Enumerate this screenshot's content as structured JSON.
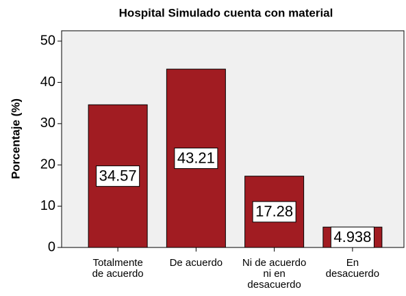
{
  "chart_data": {
    "type": "bar",
    "title": "Hospital Simulado cuenta con material",
    "ylabel": "Porcentaje  (%)",
    "categories": [
      "Totalmente\nde acuerdo",
      "De acuerdo",
      "Ni de acuerdo\nni en\ndesacuerdo",
      "En\ndesacuerdo"
    ],
    "values": [
      34.57,
      43.21,
      17.28,
      4.938
    ],
    "color": "#a11c22",
    "ylim": [
      0,
      52.5
    ],
    "yticks": [
      0,
      10,
      20,
      30,
      40,
      50
    ],
    "grid": false
  }
}
